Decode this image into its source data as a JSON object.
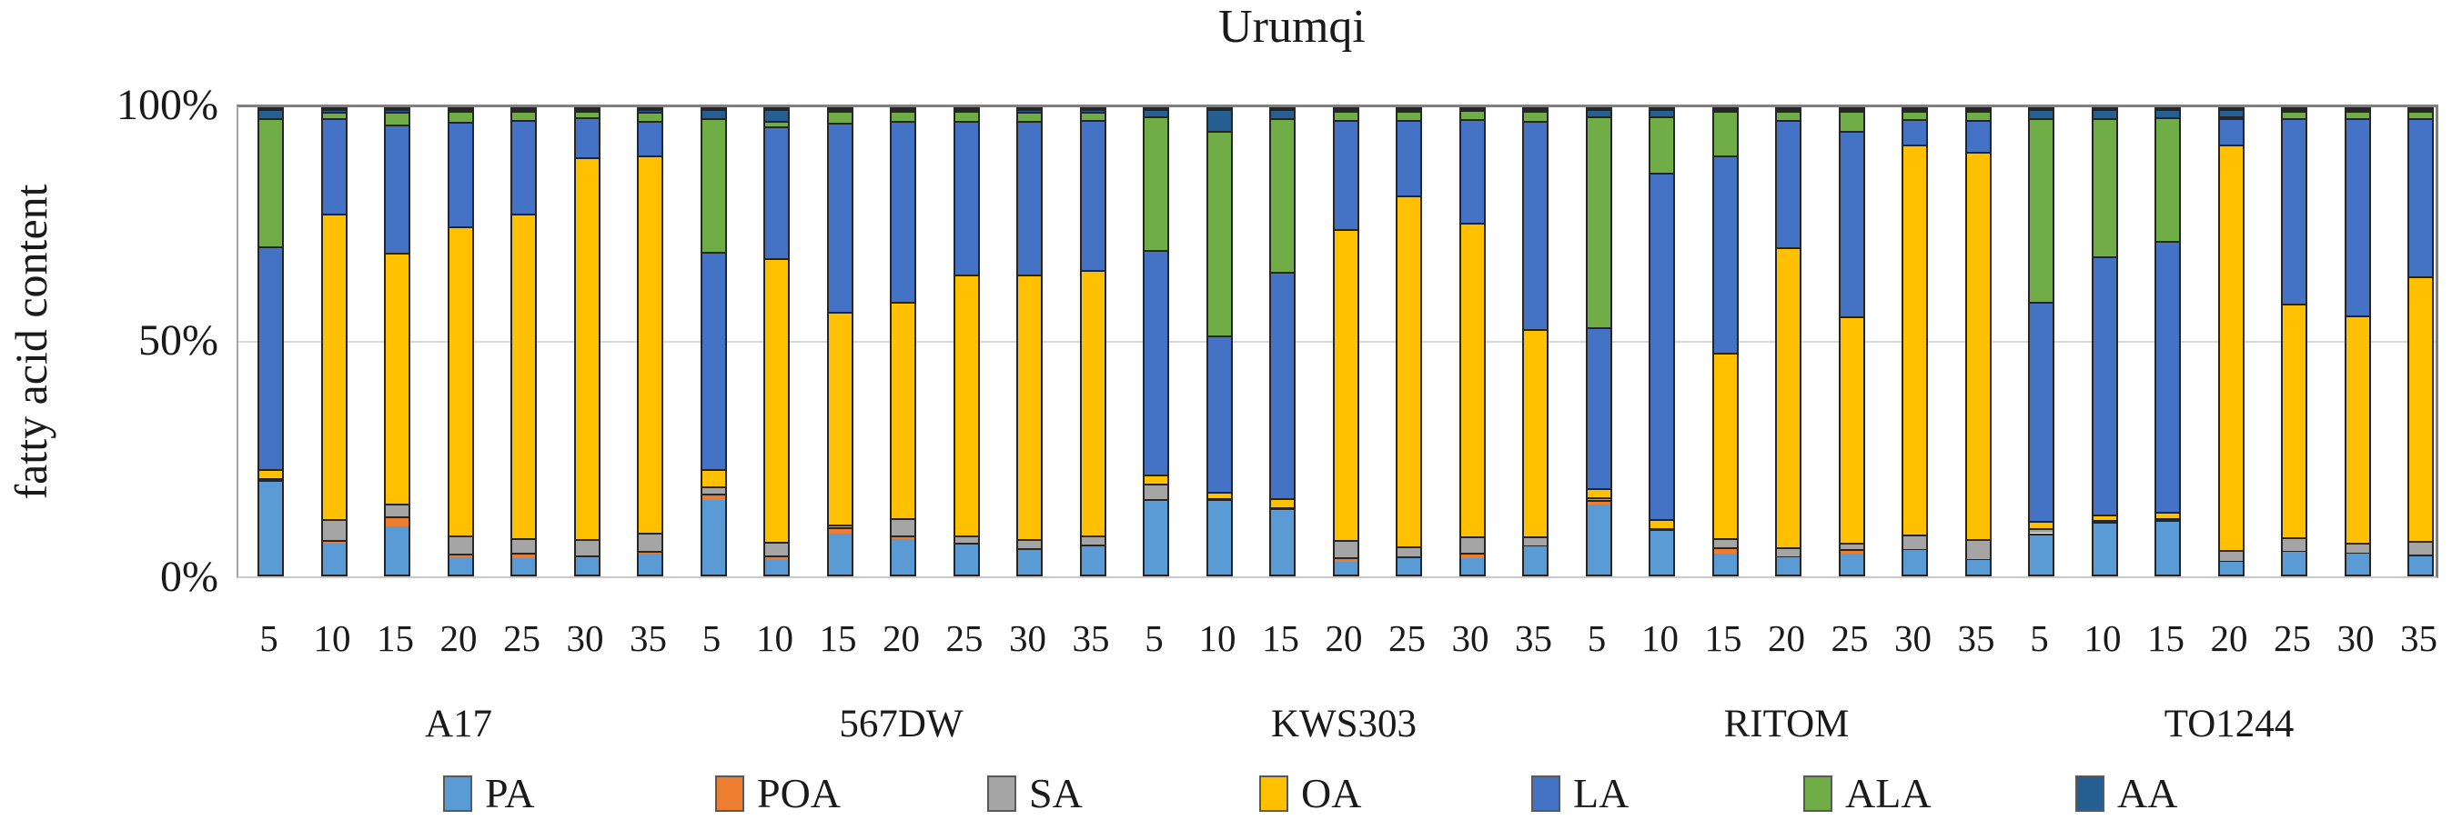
{
  "page": {
    "background": "#ffffff"
  },
  "chart_data": {
    "type": "bar",
    "variant": "stacked-100-percent-column",
    "title": "Urumqi",
    "xlabel": "",
    "ylabel": "fatty acid content",
    "ylim": [
      0,
      100
    ],
    "grid": "horizontal line at 50% only",
    "legend_position": "bottom",
    "yticks": [
      {
        "label": "100%",
        "value": 100
      },
      {
        "label": "50%",
        "value": 50
      },
      {
        "label": "0%",
        "value": 0
      }
    ],
    "series": [
      "PA",
      "POA",
      "SA",
      "OA",
      "LA",
      "ALA",
      "AA"
    ],
    "series_colors": [
      "#5B9BD5",
      "#ED7D31",
      "#A5A5A5",
      "#FFC000",
      "#4472C4",
      "#70AD47",
      "#255E91"
    ],
    "x_tick_unit_labels": [
      "5",
      "10",
      "15",
      "20",
      "25",
      "30",
      "35"
    ],
    "groups": [
      {
        "label": "A17",
        "bars": [
          {
            "day": "5",
            "values": [
              20.0,
              0.4,
              0.4,
              2.0,
              48.0,
              27.5,
              2.0
            ]
          },
          {
            "day": "10",
            "values": [
              6.7,
              0.7,
              4.4,
              65.5,
              20.3,
              1.5,
              0.5
            ]
          },
          {
            "day": "15",
            "values": [
              10.2,
              2.1,
              2.7,
              53.3,
              27.4,
              2.7,
              0.5
            ]
          },
          {
            "day": "20",
            "values": [
              3.8,
              0.8,
              3.8,
              66.6,
              22.5,
              2.5,
              0.3
            ]
          },
          {
            "day": "25",
            "values": [
              3.6,
              1.0,
              3.3,
              69.5,
              20.2,
              2.0,
              0.3
            ]
          },
          {
            "day": "30",
            "values": [
              3.6,
              0.5,
              3.5,
              82.0,
              8.7,
              1.4,
              0.3
            ]
          },
          {
            "day": "35",
            "values": [
              4.5,
              0.5,
              4.0,
              81.0,
              7.5,
              2.0,
              0.5
            ]
          }
        ]
      },
      {
        "label": "567DW",
        "bars": [
          {
            "day": "5",
            "values": [
              16.1,
              1.3,
              1.5,
              3.8,
              46.5,
              28.8,
              1.9
            ]
          },
          {
            "day": "10",
            "values": [
              3.1,
              1.0,
              2.9,
              61.0,
              28.2,
              1.3,
              2.5
            ]
          },
          {
            "day": "15",
            "values": [
              8.8,
              1.3,
              0.6,
              45.5,
              40.5,
              2.7,
              0.3
            ]
          },
          {
            "day": "20",
            "values": [
              7.5,
              0.8,
              3.8,
              46.0,
              38.4,
              2.3,
              0.3
            ]
          },
          {
            "day": "25",
            "values": [
              6.5,
              0.3,
              1.5,
              56.1,
              33.0,
              2.1,
              0.4
            ]
          },
          {
            "day": "30",
            "values": [
              5.2,
              0.5,
              1.9,
              56.6,
              32.8,
              1.9,
              0.6
            ]
          },
          {
            "day": "35",
            "values": [
              6.0,
              0.3,
              2.1,
              56.4,
              31.9,
              1.9,
              0.5
            ]
          }
        ]
      },
      {
        "label": "KWS303",
        "bars": [
          {
            "day": "5",
            "values": [
              15.5,
              0.7,
              3.3,
              1.9,
              48.0,
              28.7,
              1.5
            ]
          },
          {
            "day": "10",
            "values": [
              15.9,
              0.3,
              0.3,
              1.3,
              33.6,
              44.0,
              4.6
            ]
          },
          {
            "day": "15",
            "values": [
              13.6,
              0.6,
              0.3,
              1.9,
              48.5,
              33.0,
              2.0
            ]
          },
          {
            "day": "20",
            "values": [
              2.7,
              1.0,
              3.8,
              66.7,
              23.5,
              2.0,
              0.3
            ]
          },
          {
            "day": "25",
            "values": [
              3.5,
              0.4,
              2.1,
              75.3,
              16.2,
              2.0,
              0.3
            ]
          },
          {
            "day": "30",
            "values": [
              3.6,
              1.0,
              3.6,
              67.5,
              22.2,
              2.0,
              0.2
            ]
          },
          {
            "day": "35",
            "values": [
              6.0,
              0.3,
              1.9,
              44.6,
              44.6,
              2.2,
              0.4
            ]
          }
        ]
      },
      {
        "label": "RITOM",
        "bars": [
          {
            "day": "5",
            "values": [
              15.0,
              1.0,
              0.6,
              1.9,
              34.6,
              45.5,
              1.5
            ]
          },
          {
            "day": "10",
            "values": [
              9.4,
              0.3,
              0.3,
              1.9,
              74.6,
              12.1,
              1.5
            ]
          },
          {
            "day": "15",
            "values": [
              4.4,
              1.5,
              1.9,
              39.7,
              42.4,
              9.6,
              0.3
            ]
          },
          {
            "day": "20",
            "values": [
              3.6,
              0.3,
              1.9,
              64.0,
              27.3,
              2.0,
              0.3
            ]
          },
          {
            "day": "25",
            "values": [
              4.4,
              1.0,
              1.5,
              48.4,
              39.7,
              4.4,
              0.3
            ]
          },
          {
            "day": "30",
            "values": [
              5.2,
              0.3,
              3.1,
              83.8,
              5.6,
              1.8,
              0.3
            ]
          },
          {
            "day": "35",
            "values": [
              3.1,
              0.3,
              4.2,
              83.4,
              6.8,
              2.0,
              0.3
            ]
          }
        ]
      },
      {
        "label": "TO1244",
        "bars": [
          {
            "day": "5",
            "values": [
              8.4,
              0.5,
              1.0,
              1.7,
              47.0,
              39.5,
              2.0
            ]
          },
          {
            "day": "10",
            "values": [
              11.0,
              0.4,
              0.4,
              1.2,
              55.5,
              29.7,
              2.0
            ]
          },
          {
            "day": "15",
            "values": [
              11.3,
              0.4,
              0.4,
              1.3,
              58.3,
              26.7,
              1.7
            ]
          },
          {
            "day": "20",
            "values": [
              2.7,
              0.3,
              2.3,
              86.3,
              5.7,
              0.3,
              1.6
            ]
          },
          {
            "day": "25",
            "values": [
              4.8,
              0.3,
              2.9,
              50.3,
              39.7,
              1.7,
              0.3
            ]
          },
          {
            "day": "30",
            "values": [
              4.4,
              0.3,
              2.1,
              48.9,
              42.3,
              1.7,
              0.3
            ]
          },
          {
            "day": "35",
            "values": [
              4.0,
              0.3,
              2.9,
              57.0,
              33.9,
              1.7,
              0.3
            ]
          }
        ]
      }
    ]
  },
  "layout_colors": {
    "gridline": "#d9d9d9",
    "plot_frame": "#7f7f7f",
    "segment_border": "#262626"
  }
}
